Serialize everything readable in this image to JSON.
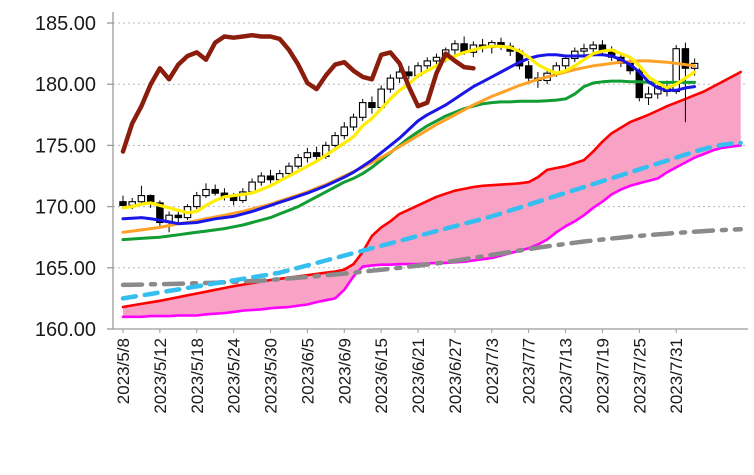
{
  "chart_data": {
    "type": "candlestick",
    "title": "",
    "xlabel": "",
    "ylabel": "",
    "grid": true,
    "legend_position": "none",
    "ylim": [
      160,
      185.9
    ],
    "y_ticks": [
      {
        "value": 160,
        "label": "160.00"
      },
      {
        "value": 165,
        "label": "165.00"
      },
      {
        "value": 170,
        "label": "170.00"
      },
      {
        "value": 175,
        "label": "175.00"
      },
      {
        "value": 180,
        "label": "180.00"
      },
      {
        "value": 185,
        "label": "185.00"
      }
    ],
    "x_labels": [
      "2023/5/8",
      "2023/5/12",
      "2023/5/18",
      "2023/5/24",
      "2023/5/30",
      "2023/6/5",
      "2023/6/9",
      "2023/6/15",
      "2023/6/21",
      "2023/6/27",
      "2023/7/3",
      "2023/7/7",
      "2023/7/13",
      "2023/7/19",
      "2023/7/25",
      "2023/7/31"
    ],
    "x_label_step": 4,
    "colors": {
      "grid": "#b8b8b8",
      "axis": "#9a9a9a",
      "label_text": "#1a1a1a",
      "candle_up_fill": "#ffffff",
      "candle_down_fill": "#000000",
      "candle_outline": "#000000",
      "cloud_fill": "#f8a2c6",
      "cloud_upper": "#ff0000",
      "cloud_lower": "#ff00ff",
      "lagging_span": "#8b1d0c",
      "ma_fast": "#ffee00",
      "ma_mid": "#1a16e8",
      "ma_slow": "#ffa126",
      "ma_long": "#119c34",
      "trend_dashed": "#35bef0",
      "trend_dashdot": "#8a8a8a"
    },
    "candles_ohlc": [
      [
        170.4,
        170.9,
        169.9,
        170.1
      ],
      [
        170.1,
        170.7,
        169.8,
        170.4
      ],
      [
        170.4,
        171.7,
        170.1,
        170.9
      ],
      [
        170.9,
        171.0,
        169.9,
        170.3
      ],
      [
        170.3,
        170.5,
        168.3,
        168.7
      ],
      [
        168.7,
        169.6,
        167.9,
        169.3
      ],
      [
        169.3,
        169.8,
        168.6,
        169.1
      ],
      [
        169.1,
        170.2,
        168.9,
        170.0
      ],
      [
        170.0,
        171.2,
        169.8,
        170.9
      ],
      [
        170.9,
        171.9,
        170.7,
        171.4
      ],
      [
        171.4,
        171.8,
        170.9,
        171.1
      ],
      [
        171.1,
        171.5,
        170.5,
        170.8
      ],
      [
        170.8,
        171.1,
        170.1,
        170.5
      ],
      [
        170.5,
        171.5,
        170.3,
        171.2
      ],
      [
        171.2,
        172.3,
        171.0,
        172.0
      ],
      [
        172.0,
        172.8,
        171.7,
        172.5
      ],
      [
        172.5,
        173.0,
        171.9,
        172.2
      ],
      [
        172.2,
        173.0,
        172.0,
        172.7
      ],
      [
        172.7,
        173.6,
        172.4,
        173.3
      ],
      [
        173.3,
        174.3,
        173.1,
        174.0
      ],
      [
        174.0,
        174.8,
        173.6,
        174.4
      ],
      [
        174.4,
        174.9,
        173.8,
        174.1
      ],
      [
        174.1,
        175.3,
        173.9,
        175.0
      ],
      [
        175.0,
        176.1,
        174.7,
        175.8
      ],
      [
        175.8,
        176.9,
        175.5,
        176.5
      ],
      [
        176.5,
        177.6,
        176.2,
        177.3
      ],
      [
        177.3,
        178.8,
        177.0,
        178.5
      ],
      [
        178.5,
        179.0,
        177.6,
        178.1
      ],
      [
        178.1,
        179.9,
        177.9,
        179.6
      ],
      [
        179.6,
        180.8,
        179.3,
        180.5
      ],
      [
        180.5,
        181.3,
        180.1,
        181.0
      ],
      [
        181.0,
        181.5,
        180.4,
        180.7
      ],
      [
        180.7,
        181.8,
        180.5,
        181.5
      ],
      [
        181.5,
        182.2,
        181.1,
        181.9
      ],
      [
        181.9,
        182.5,
        181.5,
        182.2
      ],
      [
        182.2,
        183.0,
        181.8,
        182.8
      ],
      [
        182.8,
        183.6,
        182.3,
        183.3
      ],
      [
        183.3,
        183.9,
        182.4,
        182.6
      ],
      [
        182.6,
        183.5,
        182.2,
        183.2
      ],
      [
        183.2,
        183.7,
        182.6,
        183.0
      ],
      [
        183.0,
        183.6,
        182.5,
        183.4
      ],
      [
        183.4,
        183.8,
        182.8,
        183.1
      ],
      [
        183.1,
        183.4,
        182.3,
        182.7
      ],
      [
        182.7,
        182.9,
        181.2,
        181.5
      ],
      [
        181.5,
        181.9,
        180.1,
        180.5
      ],
      [
        180.5,
        181.0,
        179.7,
        180.3
      ],
      [
        180.3,
        181.2,
        180.0,
        180.9
      ],
      [
        180.9,
        181.8,
        180.6,
        181.5
      ],
      [
        181.5,
        182.4,
        181.2,
        182.1
      ],
      [
        182.1,
        183.0,
        181.8,
        182.7
      ],
      [
        182.7,
        183.3,
        182.2,
        182.9
      ],
      [
        182.9,
        183.5,
        182.4,
        183.2
      ],
      [
        183.2,
        183.6,
        182.5,
        182.8
      ],
      [
        182.8,
        183.1,
        181.9,
        182.2
      ],
      [
        182.2,
        182.6,
        181.4,
        181.7
      ],
      [
        181.7,
        182.0,
        180.8,
        181.1
      ],
      [
        181.1,
        181.3,
        178.6,
        178.9
      ],
      [
        178.9,
        179.8,
        178.3,
        179.2
      ],
      [
        179.2,
        180.2,
        178.8,
        179.8
      ],
      [
        179.8,
        180.3,
        179.0,
        179.4
      ],
      [
        179.4,
        183.2,
        179.2,
        182.9
      ],
      [
        182.9,
        183.4,
        176.9,
        181.3
      ],
      [
        181.3,
        182.1,
        180.7,
        181.7
      ]
    ],
    "cloud": {
      "upper": [
        161.8,
        161.93,
        162.05,
        162.18,
        162.3,
        162.45,
        162.6,
        162.75,
        162.9,
        163.05,
        163.2,
        163.35,
        163.5,
        163.63,
        163.75,
        163.88,
        164.0,
        164.1,
        164.2,
        164.3,
        164.4,
        164.5,
        164.6,
        164.7,
        164.85,
        165.3,
        166.3,
        167.6,
        168.3,
        168.8,
        169.4,
        169.75,
        170.1,
        170.45,
        170.8,
        171.05,
        171.3,
        171.45,
        171.6,
        171.7,
        171.75,
        171.8,
        171.85,
        171.9,
        172.0,
        172.4,
        173.0,
        173.15,
        173.3,
        173.55,
        173.8,
        174.5,
        175.3,
        176.0,
        176.45,
        176.9,
        177.2,
        177.5,
        177.85,
        178.2,
        178.5,
        178.8,
        179.1,
        179.4,
        179.8,
        180.2,
        180.6,
        181.0
      ],
      "lower": [
        161.0,
        161.0,
        161.0,
        161.05,
        161.05,
        161.05,
        161.1,
        161.1,
        161.1,
        161.2,
        161.25,
        161.3,
        161.4,
        161.5,
        161.55,
        161.6,
        161.7,
        161.75,
        161.8,
        161.9,
        162.0,
        162.2,
        162.35,
        162.5,
        163.2,
        164.3,
        165.1,
        165.2,
        165.25,
        165.25,
        165.3,
        165.3,
        165.3,
        165.35,
        165.4,
        165.4,
        165.45,
        165.5,
        165.6,
        165.7,
        165.8,
        166.0,
        166.2,
        166.4,
        166.6,
        166.9,
        167.3,
        167.9,
        168.4,
        168.8,
        169.3,
        169.9,
        170.4,
        171.0,
        171.4,
        171.7,
        171.9,
        172.1,
        172.3,
        172.8,
        173.2,
        173.6,
        174.0,
        174.3,
        174.6,
        174.8,
        174.9,
        175.0
      ]
    },
    "series": [
      {
        "name": "trend-gray-dashdot",
        "color_key": "trend_dashdot",
        "width": 4.5,
        "dash": "19 9 4 9",
        "layer": "back",
        "values": [
          163.6,
          163.62,
          163.63,
          163.65,
          163.66,
          163.68,
          163.7,
          163.72,
          163.74,
          163.76,
          163.78,
          163.81,
          163.85,
          163.88,
          163.92,
          163.95,
          164.01,
          164.07,
          164.13,
          164.19,
          164.25,
          164.32,
          164.39,
          164.46,
          164.53,
          164.6,
          164.68,
          164.76,
          164.84,
          164.92,
          165.0,
          165.09,
          165.18,
          165.27,
          165.36,
          165.45,
          165.57,
          165.69,
          165.81,
          165.93,
          166.05,
          166.17,
          166.29,
          166.41,
          166.53,
          166.65,
          166.75,
          166.85,
          166.95,
          167.05,
          167.15,
          167.23,
          167.31,
          167.39,
          167.47,
          167.55,
          167.61,
          167.67,
          167.73,
          167.79,
          167.85,
          167.9,
          167.95,
          168.0,
          168.05,
          168.08,
          168.12,
          168.15
        ]
      },
      {
        "name": "trend-cyan-dashed",
        "color_key": "trend_dashed",
        "width": 4.5,
        "dash": "13 9",
        "layer": "back",
        "values": [
          162.5,
          162.62,
          162.74,
          162.86,
          162.99,
          163.11,
          163.23,
          163.36,
          163.48,
          163.6,
          163.73,
          163.85,
          163.97,
          164.1,
          164.22,
          164.34,
          164.47,
          164.6,
          164.8,
          165.0,
          165.2,
          165.4,
          165.6,
          165.8,
          166.0,
          166.2,
          166.4,
          166.6,
          166.8,
          167.0,
          167.2,
          167.4,
          167.6,
          167.8,
          168.0,
          168.2,
          168.4,
          168.6,
          168.8,
          169.0,
          169.2,
          169.44,
          169.68,
          169.92,
          170.16,
          170.4,
          170.64,
          170.88,
          171.12,
          171.36,
          171.6,
          171.84,
          172.08,
          172.32,
          172.56,
          172.8,
          173.04,
          173.28,
          173.52,
          173.76,
          174.0,
          174.25,
          174.5,
          174.7,
          174.9,
          175.05,
          175.15,
          175.2
        ]
      },
      {
        "name": "ma-long-green",
        "color_key": "ma_long",
        "width": 3,
        "dash": null,
        "layer": "front",
        "values": [
          167.3,
          167.35,
          167.4,
          167.45,
          167.5,
          167.6,
          167.7,
          167.8,
          167.9,
          168.0,
          168.1,
          168.2,
          168.35,
          168.5,
          168.7,
          168.9,
          169.1,
          169.4,
          169.7,
          170.0,
          170.4,
          170.8,
          171.2,
          171.6,
          172.0,
          172.3,
          172.7,
          173.2,
          173.8,
          174.4,
          175.0,
          175.6,
          176.1,
          176.6,
          177.0,
          177.4,
          177.7,
          178.0,
          178.2,
          178.4,
          178.5,
          178.55,
          178.55,
          178.6,
          178.6,
          178.6,
          178.65,
          178.7,
          178.8,
          179.2,
          179.8,
          180.1,
          180.2,
          180.25,
          180.25,
          180.2,
          180.2,
          180.15,
          180.15,
          180.15,
          180.15,
          180.15,
          180.15
        ]
      },
      {
        "name": "ma-slow-orange",
        "color_key": "ma_slow",
        "width": 3,
        "dash": null,
        "layer": "front",
        "values": [
          167.9,
          168.0,
          168.1,
          168.2,
          168.3,
          168.45,
          168.6,
          168.7,
          168.85,
          169.0,
          169.15,
          169.3,
          169.45,
          169.6,
          169.8,
          170.0,
          170.2,
          170.45,
          170.7,
          170.95,
          171.2,
          171.5,
          171.8,
          172.15,
          172.5,
          172.85,
          173.2,
          173.6,
          174.0,
          174.45,
          174.9,
          175.35,
          175.8,
          176.25,
          176.7,
          177.1,
          177.5,
          177.9,
          178.3,
          178.65,
          179.0,
          179.3,
          179.6,
          179.9,
          180.15,
          180.4,
          180.6,
          180.8,
          181.0,
          181.2,
          181.35,
          181.5,
          181.6,
          181.7,
          181.8,
          181.85,
          181.9,
          181.9,
          181.85,
          181.8,
          181.7,
          181.6,
          181.5
        ]
      },
      {
        "name": "ma-mid-blue",
        "color_key": "ma_mid",
        "width": 3,
        "dash": null,
        "layer": "front",
        "values": [
          169.0,
          169.05,
          169.1,
          169.0,
          168.9,
          168.75,
          168.6,
          168.65,
          168.7,
          168.85,
          169.0,
          169.1,
          169.2,
          169.4,
          169.6,
          169.85,
          170.1,
          170.35,
          170.6,
          170.85,
          171.1,
          171.4,
          171.7,
          172.05,
          172.4,
          172.8,
          173.3,
          173.8,
          174.4,
          175.0,
          175.6,
          176.3,
          177.0,
          177.5,
          177.9,
          178.3,
          178.8,
          179.3,
          179.8,
          180.2,
          180.6,
          181.0,
          181.4,
          181.8,
          182.1,
          182.3,
          182.4,
          182.4,
          182.3,
          182.3,
          182.3,
          182.4,
          182.4,
          182.3,
          182.0,
          181.6,
          181.0,
          180.2,
          179.7,
          179.5,
          179.5,
          179.7,
          179.8
        ]
      },
      {
        "name": "ma-fast-yellow",
        "color_key": "ma_fast",
        "width": 3.2,
        "dash": null,
        "layer": "front",
        "values": [
          169.9,
          170.0,
          170.2,
          170.3,
          170.1,
          169.9,
          169.7,
          169.5,
          169.6,
          170.1,
          170.5,
          170.8,
          170.9,
          171.0,
          171.1,
          171.4,
          171.7,
          172.1,
          172.5,
          172.9,
          173.3,
          173.7,
          174.2,
          174.7,
          175.2,
          175.7,
          176.6,
          177.2,
          178.0,
          178.8,
          179.5,
          180.0,
          180.7,
          181.1,
          181.5,
          182.0,
          182.3,
          182.6,
          182.8,
          183.0,
          183.1,
          183.1,
          183.0,
          182.7,
          182.2,
          181.6,
          181.2,
          180.9,
          181.1,
          181.5,
          182.0,
          182.5,
          182.7,
          182.8,
          182.5,
          182.2,
          181.5,
          180.6,
          180.1,
          179.7,
          180.0,
          180.5,
          181.0
        ]
      },
      {
        "name": "lagging-span-darkred",
        "color_key": "lagging_span",
        "width": 4.5,
        "dash": null,
        "layer": "front",
        "values": [
          174.5,
          176.8,
          178.2,
          180.0,
          181.3,
          180.4,
          181.6,
          182.3,
          182.6,
          182.0,
          183.4,
          183.9,
          183.8,
          183.9,
          184.0,
          183.9,
          183.9,
          183.7,
          182.8,
          181.6,
          180.1,
          179.6,
          180.7,
          181.6,
          181.8,
          181.1,
          180.6,
          180.4,
          182.4,
          182.6,
          181.7,
          179.8,
          178.2,
          178.5,
          180.9,
          182.5,
          181.9,
          181.4,
          181.3
        ]
      }
    ]
  }
}
